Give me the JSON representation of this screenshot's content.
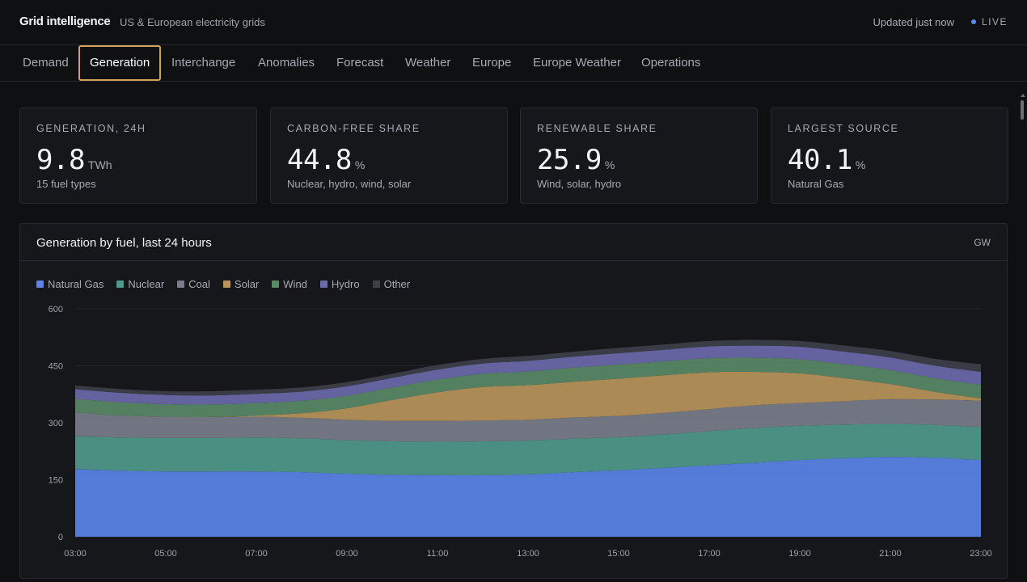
{
  "header": {
    "title": "Grid intelligence",
    "subtitle": "US & European electricity grids",
    "updated": "Updated just now",
    "live": "LIVE"
  },
  "tabs": [
    {
      "label": "Demand",
      "active": false
    },
    {
      "label": "Generation",
      "active": true
    },
    {
      "label": "Interchange",
      "active": false
    },
    {
      "label": "Anomalies",
      "active": false
    },
    {
      "label": "Forecast",
      "active": false
    },
    {
      "label": "Weather",
      "active": false
    },
    {
      "label": "Europe",
      "active": false
    },
    {
      "label": "Europe Weather",
      "active": false
    },
    {
      "label": "Operations",
      "active": false
    }
  ],
  "cards": [
    {
      "label": "GENERATION, 24H",
      "value": "9.8",
      "unit": "TWh",
      "sub": "15 fuel types"
    },
    {
      "label": "CARBON-FREE SHARE",
      "value": "44.8",
      "unit": "%",
      "sub": "Nuclear, hydro, wind, solar"
    },
    {
      "label": "RENEWABLE SHARE",
      "value": "25.9",
      "unit": "%",
      "sub": "Wind, solar, hydro"
    },
    {
      "label": "LARGEST SOURCE",
      "value": "40.1",
      "unit": "%",
      "sub": "Natural Gas"
    }
  ],
  "panel": {
    "title": "Generation by fuel, last 24 hours",
    "unit": "GW"
  },
  "chart_data": {
    "type": "area",
    "stacked": true,
    "x": [
      "03:00",
      "04:00",
      "05:00",
      "06:00",
      "07:00",
      "08:00",
      "09:00",
      "10:00",
      "11:00",
      "12:00",
      "13:00",
      "14:00",
      "15:00",
      "16:00",
      "17:00",
      "18:00",
      "19:00",
      "20:00",
      "21:00",
      "22:00",
      "23:00"
    ],
    "x_ticks": [
      "03:00",
      "05:00",
      "07:00",
      "09:00",
      "11:00",
      "13:00",
      "15:00",
      "17:00",
      "19:00",
      "21:00",
      "23:00"
    ],
    "y_ticks": [
      0,
      150,
      300,
      450,
      600
    ],
    "ylim": [
      0,
      600
    ],
    "grid": true,
    "legend_position": "top-left",
    "series": [
      {
        "name": "Natural Gas",
        "color": "#5b84e8",
        "values": [
          178,
          174,
          172,
          172,
          172,
          170,
          166,
          163,
          162,
          162,
          164,
          170,
          175,
          181,
          188,
          195,
          202,
          207,
          210,
          208,
          202
        ]
      },
      {
        "name": "Nuclear",
        "color": "#4f9a8a",
        "values": [
          87,
          87,
          88,
          88,
          89,
          89,
          88,
          88,
          88,
          89,
          89,
          88,
          87,
          88,
          90,
          91,
          90,
          88,
          87,
          86,
          86
        ]
      },
      {
        "name": "Coal",
        "color": "#7a7e8a",
        "values": [
          63,
          58,
          56,
          55,
          55,
          54,
          54,
          54,
          55,
          55,
          55,
          56,
          56,
          57,
          58,
          60,
          60,
          62,
          65,
          67,
          70
        ]
      },
      {
        "name": "Solar",
        "color": "#b8955a",
        "values": [
          0,
          0,
          0,
          0,
          3,
          12,
          30,
          55,
          75,
          88,
          91,
          94,
          98,
          99,
          97,
          88,
          78,
          60,
          40,
          20,
          6
        ]
      },
      {
        "name": "Wind",
        "color": "#5a8a68",
        "values": [
          35,
          35,
          33,
          33,
          33,
          33,
          33,
          33,
          34,
          35,
          36,
          37,
          37,
          37,
          37,
          37,
          37,
          37,
          37,
          36,
          36
        ]
      },
      {
        "name": "Hydro",
        "color": "#6d6aaa",
        "values": [
          25,
          25,
          24,
          24,
          24,
          24,
          25,
          25,
          26,
          27,
          28,
          29,
          30,
          30,
          31,
          32,
          33,
          33,
          33,
          33,
          34
        ]
      },
      {
        "name": "Other",
        "color": "#3d4049",
        "values": [
          10,
          10,
          10,
          11,
          11,
          11,
          11,
          11,
          12,
          12,
          13,
          13,
          14,
          14,
          14,
          15,
          15,
          16,
          17,
          18,
          20
        ]
      }
    ]
  }
}
